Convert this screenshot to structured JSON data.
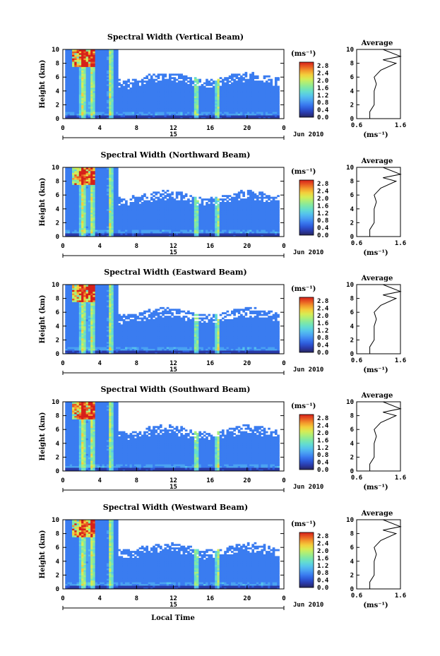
{
  "colors": {
    "colormap": [
      "#26265e",
      "#2a3aa8",
      "#2d59d8",
      "#3a7cf0",
      "#4aa2f2",
      "#55c3ec",
      "#63dcd0",
      "#7fe8a6",
      "#a8ee7c",
      "#d6ec55",
      "#f3cf3c",
      "#f39a2c",
      "#e85a22",
      "#d6201a"
    ]
  },
  "x_axis_label": "Local Time",
  "date_label": "Jun 2010",
  "day_label": "15",
  "x_ticks": [
    "0",
    "4",
    "8",
    "12",
    "16",
    "20",
    "0"
  ],
  "colorbar_unit": "(ms⁻¹)",
  "colorbar_ticks": [
    "0.0",
    "0.4",
    "0.8",
    "1.2",
    "1.6",
    "2.0",
    "2.4",
    "2.8"
  ],
  "avg_title": "Average",
  "avg_xlabel": "(ms⁻¹)",
  "avg_xticks": [
    "0.6",
    "1.6"
  ],
  "chart_data": [
    {
      "type": "heatmap",
      "title": "Spectral Width (Vertical Beam)",
      "ylabel": "Height (km)",
      "yticks": [
        "0",
        "2",
        "4",
        "6",
        "8",
        "10"
      ],
      "xlim": [
        0,
        24
      ],
      "ylim": [
        0,
        10
      ],
      "zlim": [
        0,
        3.0
      ],
      "zunit": "ms-1",
      "profile": [
        [
          0.9,
          0
        ],
        [
          0.9,
          1
        ],
        [
          1.0,
          2
        ],
        [
          1.0,
          3
        ],
        [
          1.0,
          4
        ],
        [
          1.05,
          5
        ],
        [
          1.0,
          6
        ],
        [
          1.15,
          7
        ],
        [
          1.5,
          8
        ],
        [
          1.2,
          8.5
        ],
        [
          1.6,
          9
        ],
        [
          1.2,
          10
        ]
      ]
    },
    {
      "type": "heatmap",
      "title": "Spectral Width (Northward Beam)",
      "ylabel": "Height (km)",
      "yticks": [
        "0",
        "2",
        "4",
        "6",
        "8",
        "10"
      ],
      "xlim": [
        0,
        24
      ],
      "ylim": [
        0,
        10
      ],
      "zlim": [
        0,
        3.0
      ],
      "zunit": "ms-1",
      "profile": [
        [
          0.9,
          0
        ],
        [
          0.9,
          1
        ],
        [
          1.0,
          2
        ],
        [
          1.0,
          3
        ],
        [
          1.0,
          4
        ],
        [
          1.05,
          5
        ],
        [
          1.0,
          6
        ],
        [
          1.15,
          7
        ],
        [
          1.5,
          8
        ],
        [
          1.2,
          8.5
        ],
        [
          1.6,
          9
        ],
        [
          1.2,
          10
        ]
      ]
    },
    {
      "type": "heatmap",
      "title": "Spectral Width (Eastward Beam)",
      "ylabel": "Height (km)",
      "yticks": [
        "0",
        "2",
        "4",
        "6",
        "8",
        "10"
      ],
      "xlim": [
        0,
        24
      ],
      "ylim": [
        0,
        10
      ],
      "zlim": [
        0,
        3.0
      ],
      "zunit": "ms-1",
      "profile": [
        [
          0.9,
          0
        ],
        [
          0.9,
          1
        ],
        [
          1.0,
          2
        ],
        [
          1.0,
          3
        ],
        [
          1.0,
          4
        ],
        [
          1.05,
          5
        ],
        [
          1.0,
          6
        ],
        [
          1.15,
          7
        ],
        [
          1.5,
          8
        ],
        [
          1.2,
          8.5
        ],
        [
          1.6,
          9
        ],
        [
          1.2,
          10
        ]
      ]
    },
    {
      "type": "heatmap",
      "title": "Spectral Width (Southward Beam)",
      "ylabel": "Height (km)",
      "yticks": [
        "0",
        "2",
        "4",
        "6",
        "8",
        "10"
      ],
      "xlim": [
        0,
        24
      ],
      "ylim": [
        0,
        10
      ],
      "zlim": [
        0,
        3.0
      ],
      "zunit": "ms-1",
      "profile": [
        [
          0.9,
          0
        ],
        [
          0.9,
          1
        ],
        [
          1.0,
          2
        ],
        [
          1.0,
          3
        ],
        [
          1.0,
          4
        ],
        [
          1.05,
          5
        ],
        [
          1.0,
          6
        ],
        [
          1.15,
          7
        ],
        [
          1.5,
          8
        ],
        [
          1.2,
          8.5
        ],
        [
          1.6,
          9
        ],
        [
          1.2,
          10
        ]
      ]
    },
    {
      "type": "heatmap",
      "title": "Spectral Width (Westward Beam)",
      "ylabel": "Height (km)",
      "yticks": [
        "0",
        "2",
        "4",
        "6",
        "8",
        "10"
      ],
      "xlim": [
        0,
        24
      ],
      "ylim": [
        0,
        10
      ],
      "zlim": [
        0,
        3.0
      ],
      "zunit": "ms-1",
      "profile": [
        [
          0.9,
          0
        ],
        [
          0.9,
          1
        ],
        [
          1.0,
          2
        ],
        [
          1.0,
          3
        ],
        [
          1.0,
          4
        ],
        [
          1.05,
          5
        ],
        [
          1.0,
          6
        ],
        [
          1.15,
          7
        ],
        [
          1.5,
          8
        ],
        [
          1.2,
          8.5
        ],
        [
          1.6,
          9
        ],
        [
          1.2,
          10
        ]
      ]
    }
  ]
}
